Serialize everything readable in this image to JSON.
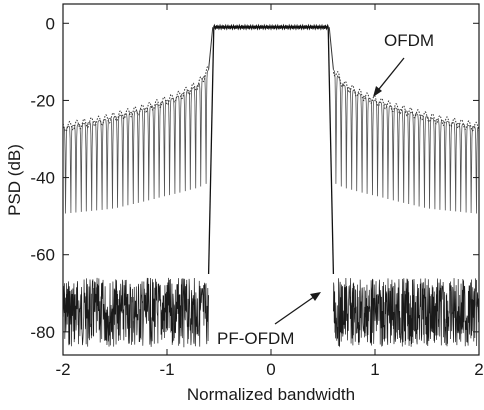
{
  "chart_data": {
    "type": "line",
    "title": "",
    "xlabel": "Normalized bandwidth",
    "ylabel": "PSD (dB)",
    "xlim": [
      -2,
      2
    ],
    "ylim": [
      -86,
      5
    ],
    "xticks": [
      -2,
      -1,
      0,
      1,
      2
    ],
    "xtick_labels": [
      "-2",
      "-1",
      "0",
      "1",
      "2"
    ],
    "yticks": [
      0,
      -20,
      -40,
      -60,
      -80
    ],
    "ytick_labels": [
      "0",
      "-20",
      "-40",
      "-60",
      "-80"
    ],
    "grid": false,
    "legend": "none",
    "series": [
      {
        "name": "OFDM",
        "color": "#333333",
        "inband": {
          "x": [
            -0.55,
            0.55
          ],
          "y": -1
        },
        "outofband_envelope_top": {
          "x": [
            -2.0,
            -1.6,
            -1.2,
            -0.9,
            -0.7,
            -0.6,
            0.6,
            0.7,
            0.9,
            1.2,
            1.6,
            2.0
          ],
          "y": [
            -27,
            -25,
            -22,
            -19,
            -16,
            -12,
            -12,
            -16,
            -19,
            -22,
            -25,
            -27
          ]
        },
        "outofband_nulls_bottom": {
          "x": [
            -2.0,
            -1.5,
            -1.0,
            -0.6,
            0.6,
            1.0,
            1.5,
            2.0
          ],
          "y": [
            -56,
            -55,
            -52,
            -50,
            -50,
            -52,
            -55,
            -56
          ]
        }
      },
      {
        "name": "PF-OFDM",
        "color": "#1a1a1a",
        "inband": {
          "x": [
            -0.55,
            0.55
          ],
          "y": -1
        },
        "transition": {
          "x": [
            -0.6,
            -0.55,
            0.55,
            0.6
          ],
          "y": [
            -65,
            -1,
            -1,
            -65
          ]
        },
        "outofband_band": {
          "x": [
            -2,
            -0.6,
            0.6,
            2
          ],
          "top": -66,
          "bottom": -84
        }
      }
    ],
    "annotations": [
      {
        "text": "OFDM",
        "target_x": 0.98,
        "target_y": -20
      },
      {
        "text": "PF-OFDM",
        "target_x": 0.45,
        "target_y": -74
      }
    ]
  }
}
